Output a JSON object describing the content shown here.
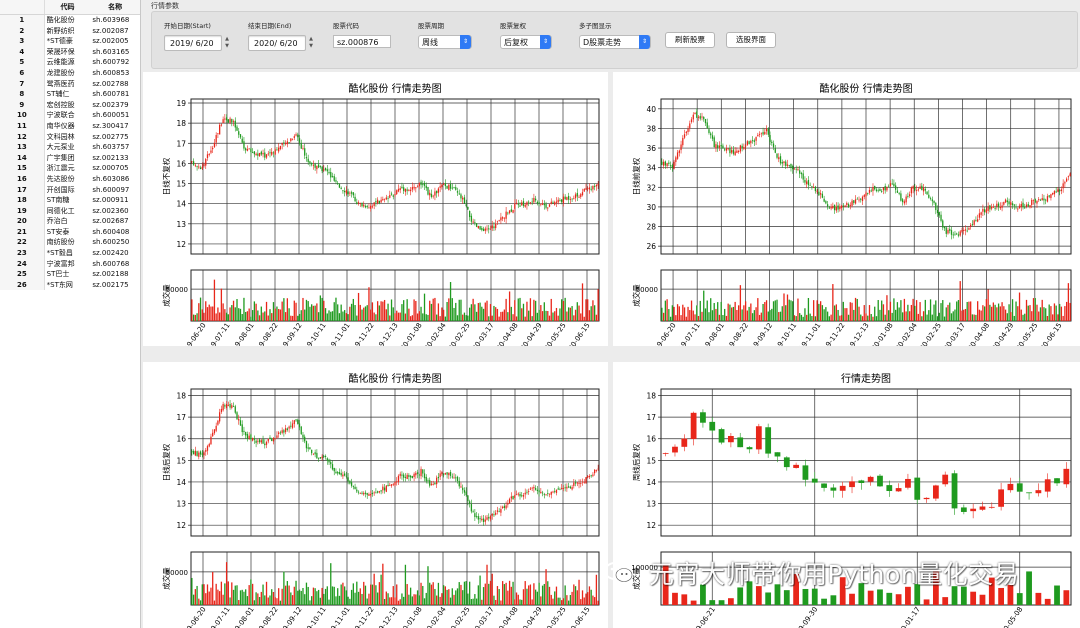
{
  "stock_table": {
    "headers": {
      "index": "",
      "name": "代码",
      "code": "名称"
    },
    "rows": [
      {
        "i": "1",
        "name": "酷化股份",
        "code": "sh.603968"
      },
      {
        "i": "2",
        "name": "新野纺织",
        "code": "sz.002087"
      },
      {
        "i": "3",
        "name": "*ST德豪",
        "code": "sz.002005"
      },
      {
        "i": "4",
        "name": "荣晟环保",
        "code": "sh.603165"
      },
      {
        "i": "5",
        "name": "云维能源",
        "code": "sh.600792"
      },
      {
        "i": "6",
        "name": "龙建股份",
        "code": "sh.600853"
      },
      {
        "i": "7",
        "name": "鹭燕医药",
        "code": "sz.002788"
      },
      {
        "i": "8",
        "name": "ST辅仁",
        "code": "sh.600781"
      },
      {
        "i": "9",
        "name": "宏创控股",
        "code": "sz.002379"
      },
      {
        "i": "10",
        "name": "宁波联合",
        "code": "sh.600051"
      },
      {
        "i": "11",
        "name": "南华仪器",
        "code": "sz.300417"
      },
      {
        "i": "12",
        "name": "文科园林",
        "code": "sz.002775"
      },
      {
        "i": "13",
        "name": "大元泵业",
        "code": "sh.603757"
      },
      {
        "i": "14",
        "name": "广宇集团",
        "code": "sz.002133"
      },
      {
        "i": "15",
        "name": "浙江震元",
        "code": "sz.000705"
      },
      {
        "i": "16",
        "name": "先达股份",
        "code": "sh.603086"
      },
      {
        "i": "17",
        "name": "开创国际",
        "code": "sh.600097"
      },
      {
        "i": "18",
        "name": "ST南糖",
        "code": "sz.000911"
      },
      {
        "i": "19",
        "name": "同德化工",
        "code": "sz.002360"
      },
      {
        "i": "20",
        "name": "乔治白",
        "code": "sz.002687"
      },
      {
        "i": "21",
        "name": "ST安泰",
        "code": "sh.600408"
      },
      {
        "i": "22",
        "name": "南纺股份",
        "code": "sh.600250"
      },
      {
        "i": "23",
        "name": "*ST毅昌",
        "code": "sz.002420"
      },
      {
        "i": "24",
        "name": "宁波富邦",
        "code": "sh.600768"
      },
      {
        "i": "25",
        "name": "ST巴士",
        "code": "sz.002188"
      },
      {
        "i": "26",
        "name": "*ST东网",
        "code": "sz.002175"
      }
    ]
  },
  "params": {
    "title": "行情参数",
    "start_label": "开始日期(Start)",
    "start_value": "2019/ 6/20",
    "end_label": "结束日期(End)",
    "end_value": "2020/ 6/20",
    "code_label": "股票代码",
    "code_value": "sz.000876",
    "period_label": "股票周期",
    "period_value": "周线",
    "adjust_label": "股票复权",
    "adjust_value": "后复权",
    "subplot_label": "多子图显示",
    "subplot_value": "D股票走势",
    "refresh_button": "刷新股票",
    "select_button": "选股界面"
  },
  "colors": {
    "up": "#e8261a",
    "down": "#1f9a1f",
    "grid": "#222222"
  },
  "chart_data": [
    {
      "type": "candlestick",
      "title": "酷化股份 行情走势图",
      "ylabel": "日线不复权",
      "vol_label": "成交量",
      "ylim": [
        11.5,
        19.2
      ],
      "yticks": [
        "12",
        "13",
        "14",
        "15",
        "16",
        "17",
        "18",
        "19"
      ],
      "vol_ticks": [
        "50000"
      ],
      "vol_max": 80000,
      "xticks": [
        "2019-06-20",
        "2019-07-11",
        "2019-08-01",
        "2019-08-22",
        "2019-09-12",
        "2019-10-11",
        "2019-11-01",
        "2019-11-22",
        "2019-12-13",
        "2020-01-08",
        "2020-02-04",
        "2020-02-25",
        "2020-03-17",
        "2020-04-08",
        "2020-04-29",
        "2020-05-25",
        "2020-06-15"
      ],
      "close": [
        16.0,
        15.8,
        16.9,
        18.3,
        18.0,
        16.8,
        16.5,
        16.4,
        16.7,
        17.0,
        17.5,
        16.2,
        15.8,
        15.6,
        14.9,
        14.6,
        14.0,
        13.9,
        14.1,
        14.3,
        14.8,
        14.7,
        15.0,
        14.3,
        14.9,
        14.8,
        14.2,
        13.0,
        12.6,
        12.9,
        13.4,
        13.9,
        14.0,
        14.2,
        13.9,
        14.1,
        14.3,
        14.4,
        14.7,
        14.9
      ]
    },
    {
      "type": "candlestick",
      "title": "酷化股份 行情走势图",
      "ylabel": "日线前复权",
      "vol_label": "成交量",
      "ylim": [
        25.2,
        41
      ],
      "yticks": [
        "26",
        "28",
        "30",
        "32",
        "34",
        "36",
        "38",
        "40"
      ],
      "vol_ticks": [
        "50000"
      ],
      "vol_max": 80000,
      "xticks": [
        "2019-06-20",
        "2019-07-11",
        "2019-08-01",
        "2019-08-22",
        "2019-09-12",
        "2019-10-11",
        "2019-11-01",
        "2019-11-22",
        "2019-12-13",
        "2020-01-08",
        "2020-02-04",
        "2020-02-25",
        "2020-03-17",
        "2020-04-08",
        "2020-04-29",
        "2020-05-25",
        "2020-06-15"
      ],
      "close": [
        34.5,
        34.2,
        36.8,
        39.5,
        39.0,
        36.3,
        35.8,
        35.6,
        36.4,
        37.0,
        37.8,
        35.0,
        34.1,
        33.6,
        32.1,
        31.4,
        30.0,
        29.8,
        30.3,
        30.8,
        31.8,
        31.6,
        32.3,
        30.6,
        32.0,
        31.8,
        30.4,
        27.6,
        27.0,
        27.6,
        28.8,
        29.9,
        30.1,
        30.6,
        29.9,
        30.3,
        30.8,
        31.0,
        31.7,
        33.3
      ]
    },
    {
      "type": "candlestick",
      "title": "酷化股份 行情走势图",
      "ylabel": "日线后复权",
      "vol_label": "成交量",
      "ylim": [
        11.5,
        18.3
      ],
      "yticks": [
        "12",
        "13",
        "14",
        "15",
        "16",
        "17",
        "18"
      ],
      "vol_ticks": [
        "50000"
      ],
      "vol_max": 80000,
      "xticks": [
        "2019-06-20",
        "2019-07-11",
        "2019-08-01",
        "2019-08-22",
        "2019-09-12",
        "2019-10-11",
        "2019-11-01",
        "2019-11-22",
        "2019-12-13",
        "2020-01-08",
        "2020-02-04",
        "2020-02-25",
        "2020-03-17",
        "2020-04-08",
        "2020-04-29",
        "2020-05-25",
        "2020-06-15"
      ],
      "close": [
        15.4,
        15.2,
        16.2,
        17.6,
        17.4,
        16.2,
        15.9,
        15.8,
        16.1,
        16.4,
        16.9,
        15.6,
        15.2,
        15.0,
        14.4,
        14.1,
        13.5,
        13.4,
        13.6,
        13.8,
        14.3,
        14.2,
        14.5,
        13.8,
        14.4,
        14.3,
        13.7,
        12.5,
        12.2,
        12.5,
        12.9,
        13.4,
        13.5,
        13.7,
        13.4,
        13.6,
        13.8,
        13.9,
        14.2,
        14.6
      ]
    },
    {
      "type": "candlestick",
      "title": "行情走势图",
      "ylabel": "周线后复权",
      "vol_label": "成交量",
      "ylim": [
        11.5,
        18.3
      ],
      "yticks": [
        "12",
        "13",
        "14",
        "15",
        "16",
        "17",
        "18"
      ],
      "vol_ticks": [
        "100000"
      ],
      "vol_max": 140000,
      "xticks": [
        "2019-06-21",
        "2019-09-30",
        "2020-01-17",
        "2020-05-08"
      ],
      "close": [
        15.3,
        15.6,
        15.9,
        17.2,
        16.9,
        16.2,
        15.9,
        16.1,
        15.8,
        15.7,
        16.4,
        15.5,
        15.1,
        14.8,
        14.6,
        14.2,
        14.0,
        13.6,
        13.5,
        13.8,
        14.0,
        14.1,
        14.2,
        13.9,
        13.6,
        13.7,
        14.0,
        13.1,
        13.3,
        13.9,
        14.2,
        12.9,
        12.5,
        12.6,
        12.7,
        13.0,
        13.5,
        13.9,
        13.6,
        13.4,
        13.8,
        14.1,
        13.9,
        14.6
      ]
    }
  ],
  "watermark": {
    "text": "元宵大师带你用Python量化交易"
  }
}
